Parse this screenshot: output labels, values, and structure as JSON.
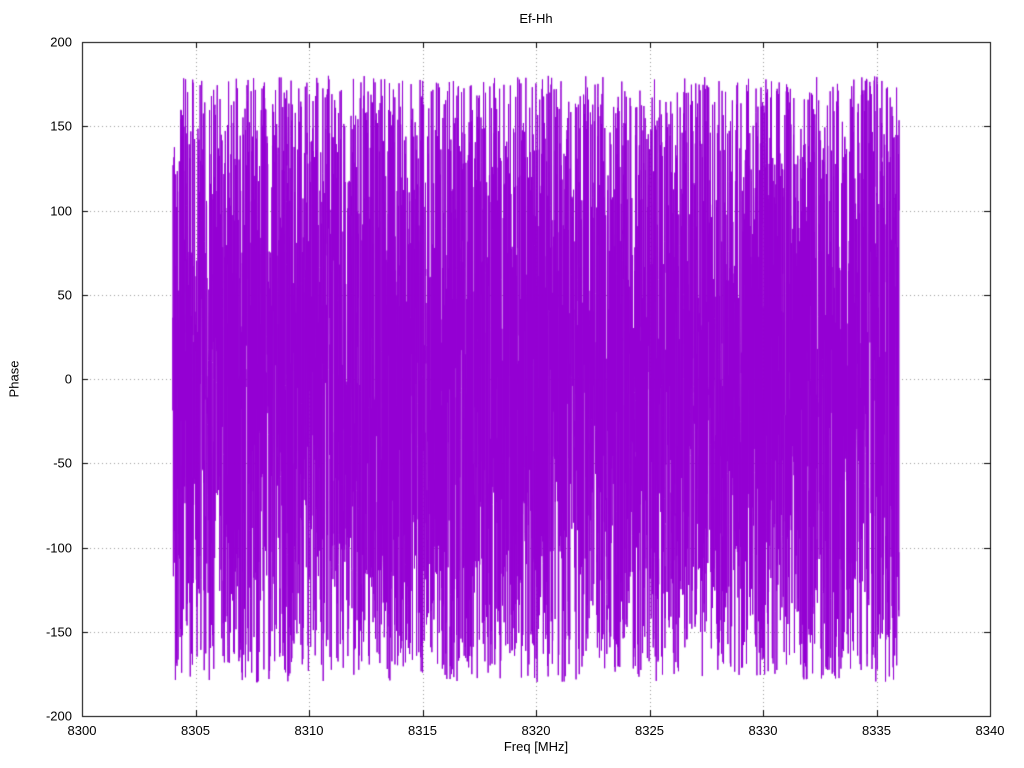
{
  "page": {
    "background": "#ffffff",
    "grid_color": "#9a9a9a",
    "border_color": "#000000"
  },
  "chart_data": {
    "type": "line",
    "title": "Ef-Hh",
    "xlabel": "Freq [MHz]",
    "ylabel": "Phase",
    "xlim": [
      8300,
      8340
    ],
    "ylim": [
      -200,
      200
    ],
    "xticks": [
      8300,
      8305,
      8310,
      8315,
      8320,
      8325,
      8330,
      8335,
      8340
    ],
    "yticks": [
      -200,
      -150,
      -100,
      -50,
      0,
      50,
      100,
      150,
      200
    ],
    "grid": true,
    "legend": "none",
    "series": [
      {
        "name": "Ef-Hh phase",
        "color": "#9400D3",
        "x_start": 8304,
        "x_end": 8336,
        "n_points": 5000,
        "y_distribution": "uniform",
        "y_min": -180,
        "y_max": 180,
        "seed": 42,
        "description": "Dense pseudo-random interferometric phase noise uniformly filling -180 to +180 degrees across 8304-8336 MHz, rendered as a connected line that appears as a solid violet band with spikes"
      }
    ]
  }
}
